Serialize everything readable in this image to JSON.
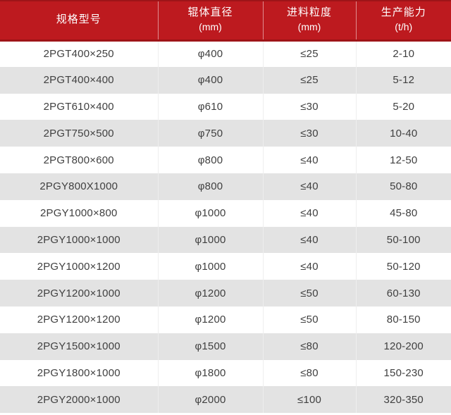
{
  "chart_data": {
    "type": "table",
    "title": "",
    "columns": [
      {
        "label": "规格型号",
        "sub": ""
      },
      {
        "label": "辊体直径",
        "sub": "(mm)"
      },
      {
        "label": "进料粒度",
        "sub": "(mm)"
      },
      {
        "label": "生产能力",
        "sub": "(t/h)"
      }
    ],
    "rows": [
      [
        "2PGT400×250",
        "φ400",
        "≤25",
        "2-10"
      ],
      [
        "2PGT400×400",
        "φ400",
        "≤25",
        "5-12"
      ],
      [
        "2PGT610×400",
        "φ610",
        "≤30",
        "5-20"
      ],
      [
        "2PGT750×500",
        "φ750",
        "≤30",
        "10-40"
      ],
      [
        "2PGT800×600",
        "φ800",
        "≤40",
        "12-50"
      ],
      [
        "2PGY800X1000",
        "φ800",
        "≤40",
        "50-80"
      ],
      [
        "2PGY1000×800",
        "φ1000",
        "≤40",
        "45-80"
      ],
      [
        "2PGY1000×1000",
        "φ1000",
        "≤40",
        "50-100"
      ],
      [
        "2PGY1000×1200",
        "φ1000",
        "≤40",
        "50-120"
      ],
      [
        "2PGY1200×1000",
        "φ1200",
        "≤50",
        "60-130"
      ],
      [
        "2PGY1200×1200",
        "φ1200",
        "≤50",
        "80-150"
      ],
      [
        "2PGY1500×1000",
        "φ1500",
        "≤80",
        "120-200"
      ],
      [
        "2PGY1800×1000",
        "φ1800",
        "≤80",
        "150-230"
      ],
      [
        "2PGY2000×1000",
        "φ2000",
        "≤100",
        "320-350"
      ]
    ],
    "layout": {
      "header_rows": 1,
      "zebra_striping": true,
      "first_data_row_bg": "white"
    },
    "colors": {
      "header_bg": "#bd1a1f",
      "header_border": "#9e1418",
      "header_text": "#ffffff",
      "row_bg": "#ffffff",
      "row_alt_bg": "#e3e3e3",
      "cell_divider": "#eeeeee",
      "body_text": "#404040"
    }
  }
}
